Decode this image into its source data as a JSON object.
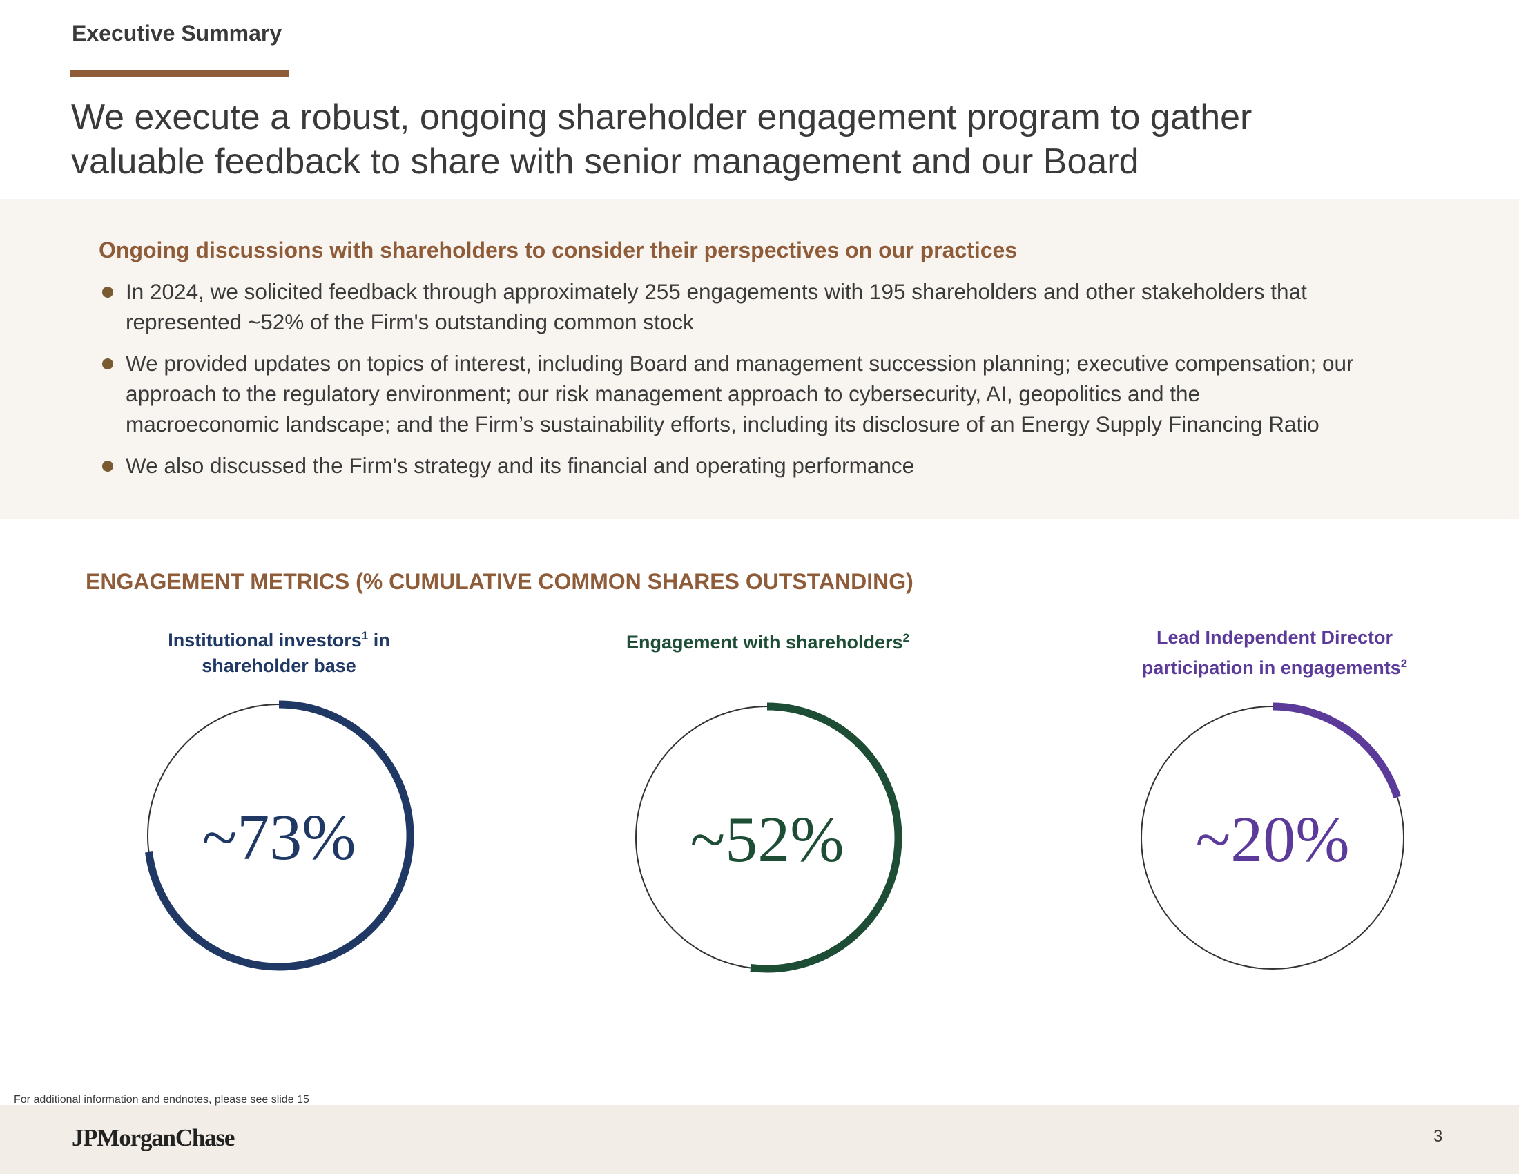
{
  "header": {
    "section_label": "Executive Summary",
    "headline_lines": [
      "We execute a robust, ongoing shareholder engagement program to gather",
      "valuable feedback to share with senior management and our Board"
    ]
  },
  "panel": {
    "heading": "Ongoing discussions with shareholders to consider their perspectives on our practices",
    "bullets": [
      {
        "lines": [
          "In 2024, we solicited feedback through approximately 255 engagements with 195 shareholders and other stakeholders that",
          "represented ~52% of the Firm's outstanding common stock"
        ]
      },
      {
        "lines": [
          "We provided updates on topics of interest, including Board and management succession planning; executive compensation; our",
          "approach to the regulatory environment; our risk management approach to cybersecurity, AI, geopolitics and the",
          "macroeconomic landscape; and the Firm’s sustainability efforts, including its disclosure of an Energy Supply Financing Ratio"
        ]
      },
      {
        "lines": [
          "We also discussed the Firm’s strategy and its financial and operating performance"
        ]
      }
    ]
  },
  "metrics": {
    "title": "ENGAGEMENT METRICS (% CUMULATIVE COMMON SHARES OUTSTANDING)",
    "items": [
      {
        "label_line1": "Institutional investors",
        "label_line1_sup": "1",
        "label_line1_suffix": " in",
        "label_line2": "shareholder base",
        "label_line2_sup": "",
        "value_text": "~73%",
        "color": "#1f3864"
      },
      {
        "label_line1": "Engagement with shareholders",
        "label_line1_sup": "2",
        "label_line1_suffix": "",
        "label_line2": "",
        "label_line2_sup": "",
        "value_text": "~52%",
        "color": "#1e4d36"
      },
      {
        "label_line1": "Lead Independent Director",
        "label_line1_sup": "",
        "label_line1_suffix": "",
        "label_line2": "participation in engagements",
        "label_line2_sup": "2",
        "value_text": "~20%",
        "color": "#5b3a9a"
      }
    ]
  },
  "chart_data": {
    "type": "pie",
    "title": "ENGAGEMENT METRICS (% CUMULATIVE COMMON SHARES OUTSTANDING)",
    "categories": [
      "Institutional investors in shareholder base",
      "Engagement with shareholders",
      "Lead Independent Director participation in engagements"
    ],
    "values": [
      73,
      52,
      20
    ],
    "value_labels": [
      "~73%",
      "~52%",
      "~20%"
    ],
    "unit": "%",
    "ylim": [
      0,
      100
    ]
  },
  "footer": {
    "endnote": "For additional information and endnotes, please see slide 15",
    "logo_text": "JPMorganChase",
    "page_number": "3"
  },
  "colors": {
    "accent_brown": "#8f5c3a",
    "panel_bg": "#f8f5f0",
    "footer_bg": "#f2eee7",
    "bullet_dot": "#7a5a30",
    "ring_track": "#333333"
  }
}
